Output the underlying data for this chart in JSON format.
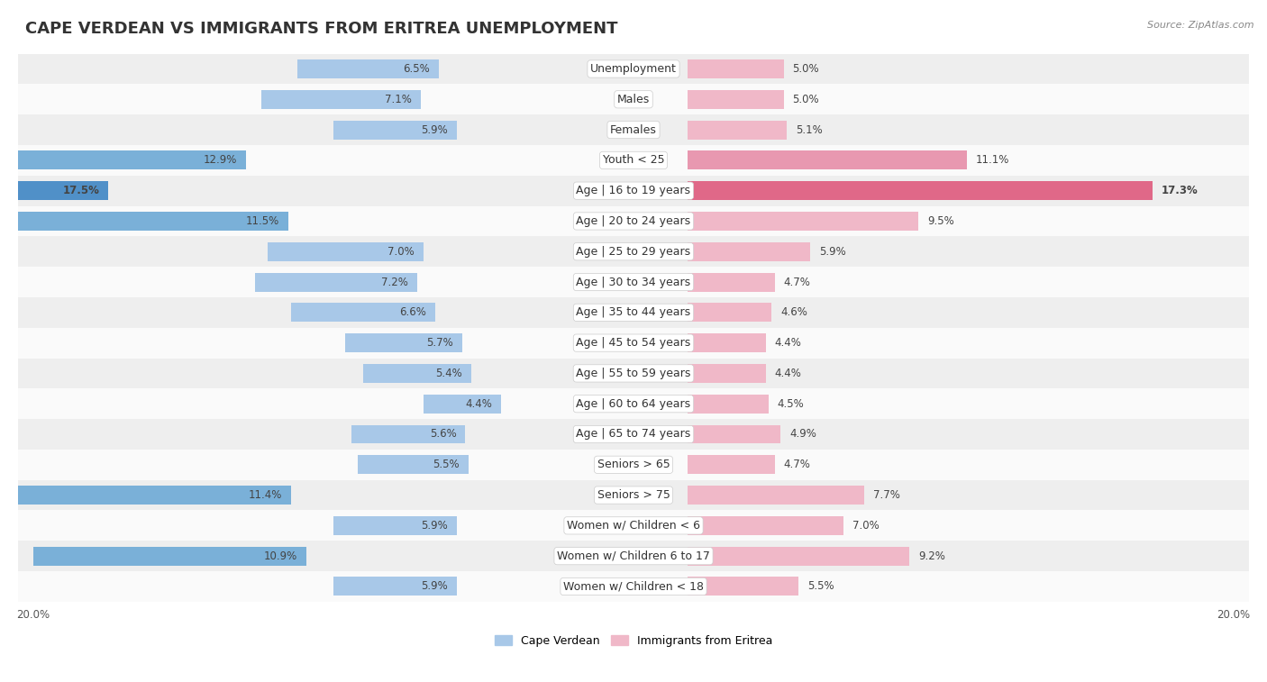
{
  "title": "CAPE VERDEAN VS IMMIGRANTS FROM ERITREA UNEMPLOYMENT",
  "source": "Source: ZipAtlas.com",
  "categories": [
    "Unemployment",
    "Males",
    "Females",
    "Youth < 25",
    "Age | 16 to 19 years",
    "Age | 20 to 24 years",
    "Age | 25 to 29 years",
    "Age | 30 to 34 years",
    "Age | 35 to 44 years",
    "Age | 45 to 54 years",
    "Age | 55 to 59 years",
    "Age | 60 to 64 years",
    "Age | 65 to 74 years",
    "Seniors > 65",
    "Seniors > 75",
    "Women w/ Children < 6",
    "Women w/ Children 6 to 17",
    "Women w/ Children < 18"
  ],
  "cape_verdean": [
    6.5,
    7.1,
    5.9,
    12.9,
    17.5,
    11.5,
    7.0,
    7.2,
    6.6,
    5.7,
    5.4,
    4.4,
    5.6,
    5.5,
    11.4,
    5.9,
    10.9,
    5.9
  ],
  "eritrea": [
    5.0,
    5.0,
    5.1,
    11.1,
    17.3,
    9.5,
    5.9,
    4.7,
    4.6,
    4.4,
    4.4,
    4.5,
    4.9,
    4.7,
    7.7,
    7.0,
    9.2,
    5.5
  ],
  "cape_verdean_color_normal": "#a8c8e8",
  "cape_verdean_color_medium": "#7ab0d8",
  "cape_verdean_color_high": "#5090c8",
  "eritrea_color_normal": "#f0b8c8",
  "eritrea_color_medium": "#e898b0",
  "eritrea_color_high": "#e06888",
  "row_bg_light": "#eeeeee",
  "row_bg_white": "#fafafa",
  "max_val": 20.0,
  "legend_cape_verdean": "Cape Verdean",
  "legend_eritrea": "Immigrants from Eritrea",
  "title_fontsize": 13,
  "label_fontsize": 9,
  "value_fontsize": 8.5,
  "medium_threshold": 10.0,
  "high_threshold": 15.0
}
